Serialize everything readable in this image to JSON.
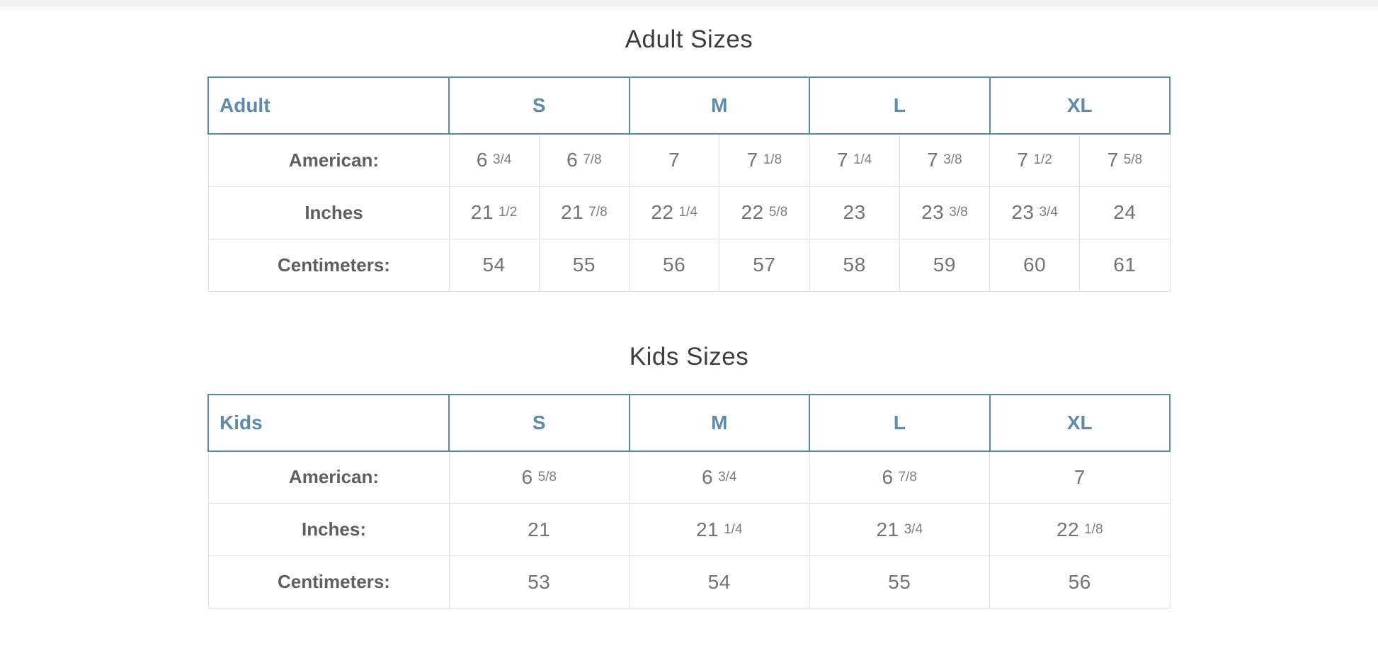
{
  "colors": {
    "accent_blue_border": "#5b87a9",
    "accent_blue_text": "#5e8aac",
    "title_text": "#3d3d3d",
    "label_text": "#5f5f5f",
    "value_text": "#737373",
    "grid_line": "#e0e0e2",
    "top_band": "#f2f2f4"
  },
  "adult": {
    "title": "Adult Sizes",
    "header": {
      "label": "Adult",
      "s": "S",
      "m": "M",
      "l": "L",
      "xl": "XL"
    },
    "rows": [
      {
        "label": "American:",
        "cells": [
          {
            "m": "6",
            "f": "3/4"
          },
          {
            "m": "6",
            "f": "7/8"
          },
          {
            "m": "7",
            "f": ""
          },
          {
            "m": "7",
            "f": "1/8"
          },
          {
            "m": "7",
            "f": "1/4"
          },
          {
            "m": "7",
            "f": "3/8"
          },
          {
            "m": "7",
            "f": "1/2"
          },
          {
            "m": "7",
            "f": "5/8"
          }
        ]
      },
      {
        "label": "Inches",
        "cells": [
          {
            "m": "21",
            "f": "1/2"
          },
          {
            "m": "21",
            "f": "7/8"
          },
          {
            "m": "22",
            "f": "1/4"
          },
          {
            "m": "22",
            "f": "5/8"
          },
          {
            "m": "23",
            "f": ""
          },
          {
            "m": "23",
            "f": "3/8"
          },
          {
            "m": "23",
            "f": "3/4"
          },
          {
            "m": "24",
            "f": ""
          }
        ]
      },
      {
        "label": "Centimeters:",
        "cells": [
          {
            "m": "54",
            "f": ""
          },
          {
            "m": "55",
            "f": ""
          },
          {
            "m": "56",
            "f": ""
          },
          {
            "m": "57",
            "f": ""
          },
          {
            "m": "58",
            "f": ""
          },
          {
            "m": "59",
            "f": ""
          },
          {
            "m": "60",
            "f": ""
          },
          {
            "m": "61",
            "f": ""
          }
        ]
      }
    ]
  },
  "kids": {
    "title": "Kids Sizes",
    "header": {
      "label": "Kids",
      "s": "S",
      "m": "M",
      "l": "L",
      "xl": "XL"
    },
    "rows": [
      {
        "label": "American:",
        "cells": [
          {
            "m": "6",
            "f": "5/8"
          },
          {
            "m": "6",
            "f": "3/4"
          },
          {
            "m": "6",
            "f": "7/8"
          },
          {
            "m": "7",
            "f": ""
          }
        ]
      },
      {
        "label": "Inches:",
        "cells": [
          {
            "m": "21",
            "f": ""
          },
          {
            "m": "21",
            "f": "1/4"
          },
          {
            "m": "21",
            "f": "3/4"
          },
          {
            "m": "22",
            "f": "1/8"
          }
        ]
      },
      {
        "label": "Centimeters:",
        "cells": [
          {
            "m": "53",
            "f": ""
          },
          {
            "m": "54",
            "f": ""
          },
          {
            "m": "55",
            "f": ""
          },
          {
            "m": "56",
            "f": ""
          }
        ]
      }
    ]
  }
}
